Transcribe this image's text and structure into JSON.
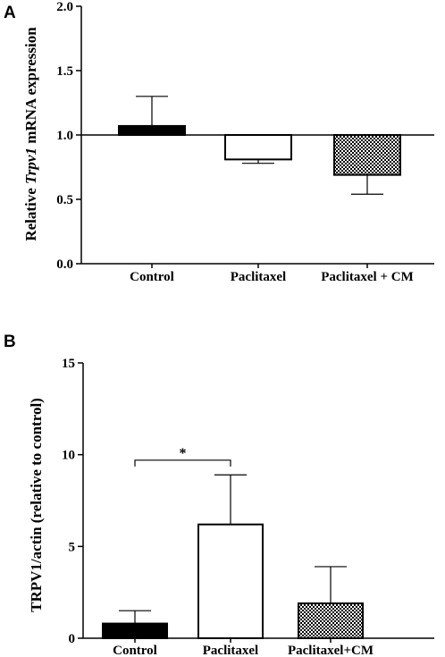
{
  "chart_data": [
    {
      "panel": "A",
      "type": "bar",
      "ylabel_pre": "Relative ",
      "ylabel_italic": "Trpv1",
      "ylabel_post": " mRNA expression",
      "xlabel": "",
      "ylim": [
        0,
        2.0
      ],
      "baseline": 1.0,
      "yticks": [
        "0.0",
        "0.5",
        "1.0",
        "1.5",
        "2.0"
      ],
      "categories": [
        "Control",
        "Paclitaxel",
        "Paclitaxel + CM"
      ],
      "values": [
        1.07,
        0.81,
        0.69
      ],
      "errors": [
        0.23,
        0.03,
        0.15
      ],
      "fills": [
        "solid",
        "white",
        "checker"
      ]
    },
    {
      "panel": "B",
      "type": "bar",
      "ylabel": "TRPV1/actin (relative to control)",
      "xlabel": "",
      "ylim": [
        0,
        15
      ],
      "baseline": 0,
      "yticks": [
        "0",
        "5",
        "10",
        "15"
      ],
      "categories": [
        "Control",
        "Paclitaxel",
        "Paclitaxel+CM"
      ],
      "values": [
        0.8,
        6.2,
        1.9
      ],
      "errors": [
        0.7,
        2.7,
        2.0
      ],
      "fills": [
        "solid",
        "white",
        "checker"
      ],
      "significance": {
        "from": 0,
        "to": 1,
        "label": "*",
        "y": 9.7
      }
    }
  ],
  "colors": {
    "bar_solid": "#000000",
    "bar_white": "#ffffff",
    "checker_dark": "#000000",
    "checker_light": "#ffffff"
  }
}
